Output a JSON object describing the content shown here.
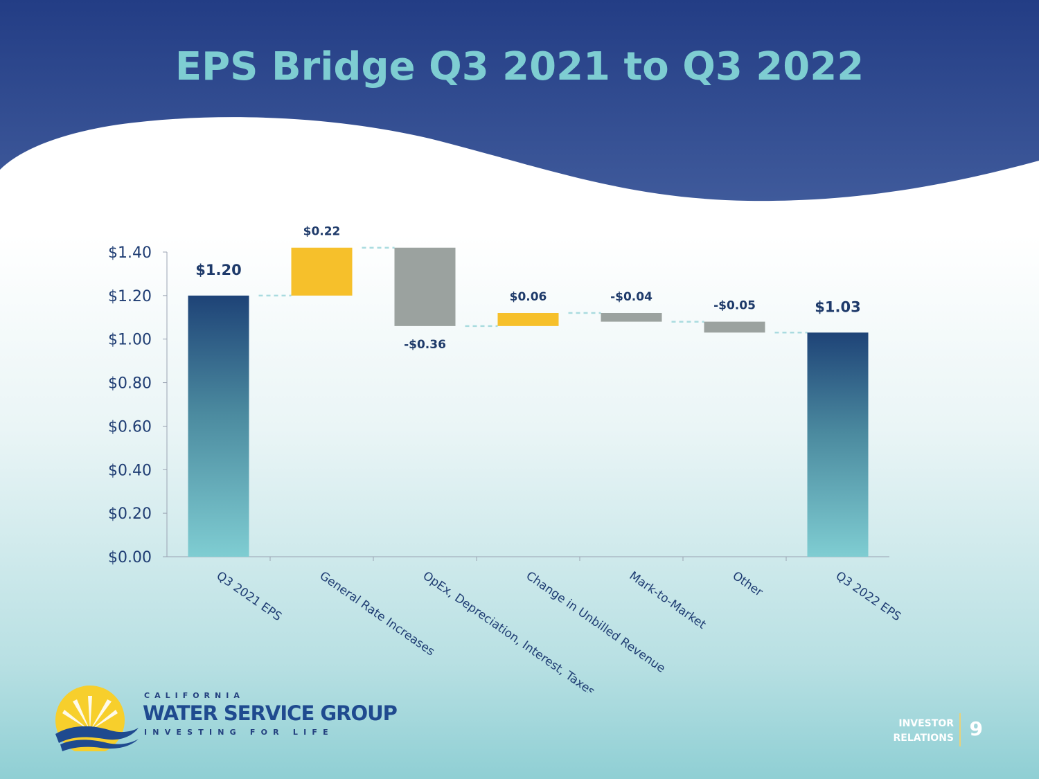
{
  "slide": {
    "title": "EPS Bridge Q3 2021 to Q3 2022",
    "page_number": "9",
    "footer_label_line1": "INVESTOR",
    "footer_label_line2": "RELATIONS"
  },
  "logo": {
    "line1": "CALIFORNIA",
    "line2": "WATER SERVICE GROUP",
    "line3": "INVESTING FOR LIFE"
  },
  "colors": {
    "header_dark": "#233d85",
    "header_light": "#3f5a9b",
    "title": "#7ecdd2",
    "total_bar_top": "#1e4377",
    "total_bar_bottom": "#7fcdd2",
    "increase": "#f6c02b",
    "decrease": "#9ba29f",
    "connector": "#a9dbdf",
    "label_text": "#1e3a6a",
    "axis_text": "#1f3d73"
  },
  "chart_data": {
    "type": "bar",
    "subtype": "waterfall",
    "categories": [
      "Q3 2021 EPS",
      "General Rate Increases",
      "OpEx, Depreciation, Interest, Taxes",
      "Change in Unbilled Revenue",
      "Mark-to-Market",
      "Other",
      "Q3 2022 EPS"
    ],
    "values": [
      1.2,
      0.22,
      -0.36,
      0.06,
      -0.04,
      -0.05,
      1.03
    ],
    "kinds": [
      "total",
      "increase",
      "decrease",
      "increase",
      "decrease",
      "decrease",
      "total"
    ],
    "data_labels": [
      "$1.20",
      "$0.22",
      "-$0.36",
      "$0.06",
      "-$0.04",
      "-$0.05",
      "$1.03"
    ],
    "ylim": [
      0,
      1.4
    ],
    "yticks": [
      0,
      0.2,
      0.4,
      0.6,
      0.8,
      1.0,
      1.2,
      1.4
    ],
    "ytick_labels": [
      "$0.00",
      "$0.20",
      "$0.40",
      "$0.60",
      "$0.80",
      "$1.00",
      "$1.20",
      "$1.40"
    ],
    "grid": false,
    "legend": "none",
    "connectors": true
  }
}
